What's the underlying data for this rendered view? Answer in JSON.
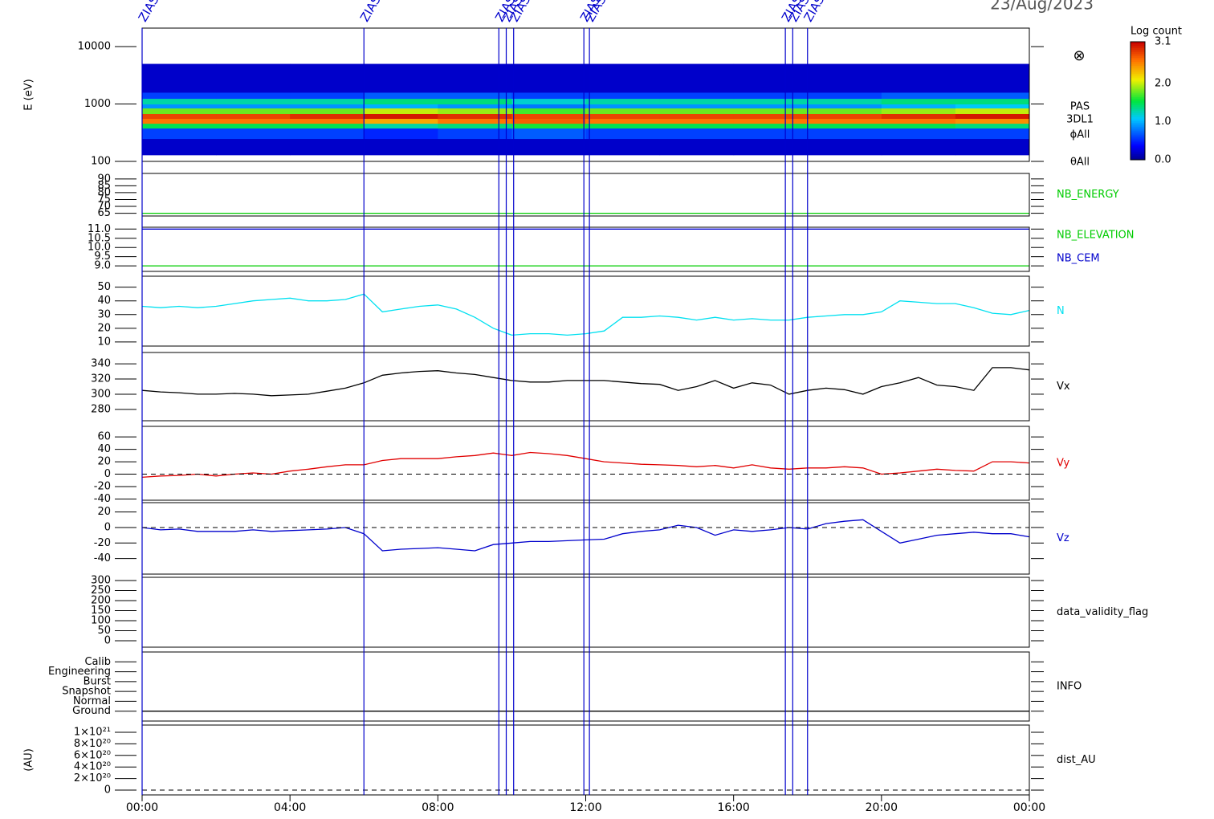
{
  "date": "23/Aug/2023",
  "events": {
    "label": "ZIAS",
    "x": [
      0.0,
      6.0,
      9.65,
      9.85,
      10.05,
      11.95,
      12.1,
      17.4,
      17.6,
      18.0
    ]
  },
  "chart_data": [
    {
      "type": "heatmap",
      "ylabel": "E (eV)",
      "log_y": true,
      "xlim": [
        0,
        24
      ],
      "ylim": [
        100,
        21000
      ],
      "yticks": [
        100,
        1000,
        10000
      ],
      "x_edges": [
        0,
        2,
        4,
        6,
        8,
        10,
        12,
        14,
        16,
        18,
        20,
        22,
        24
      ],
      "y_edges": [
        130,
        250,
        380,
        460,
        560,
        680,
        850,
        1000,
        1250,
        1600,
        5000
      ],
      "values": [
        [
          0.2,
          0.2,
          0.2,
          0.2,
          0.2,
          0.2,
          0.2,
          0.2,
          0.2,
          0.2,
          0.2,
          0.2
        ],
        [
          0.6,
          0.6,
          0.6,
          0.5,
          0.6,
          0.7,
          0.6,
          0.6,
          0.6,
          0.6,
          0.6,
          0.6
        ],
        [
          1.5,
          1.5,
          1.5,
          1.3,
          1.4,
          1.6,
          1.5,
          1.5,
          1.5,
          1.5,
          1.5,
          1.4
        ],
        [
          2.6,
          2.6,
          2.6,
          2.4,
          2.6,
          2.7,
          2.6,
          2.6,
          2.6,
          2.6,
          2.6,
          2.5
        ],
        [
          2.8,
          2.8,
          2.9,
          3.0,
          2.9,
          2.8,
          2.8,
          2.8,
          2.8,
          2.8,
          2.9,
          3.0
        ],
        [
          1.8,
          1.8,
          1.8,
          2.0,
          1.9,
          1.7,
          1.8,
          1.8,
          1.8,
          1.8,
          1.9,
          2.0
        ],
        [
          0.9,
          0.9,
          0.9,
          1.0,
          0.9,
          0.8,
          0.9,
          0.9,
          0.9,
          0.9,
          1.0,
          1.1
        ],
        [
          1.3,
          1.3,
          1.3,
          1.4,
          1.4,
          1.2,
          1.3,
          1.3,
          1.3,
          1.3,
          1.4,
          1.4
        ],
        [
          0.6,
          0.6,
          0.6,
          0.7,
          0.7,
          0.6,
          0.6,
          0.6,
          0.6,
          0.6,
          0.7,
          0.7
        ],
        [
          0.2,
          0.2,
          0.2,
          0.2,
          0.2,
          0.2,
          0.2,
          0.2,
          0.2,
          0.2,
          0.2,
          0.2
        ]
      ],
      "symbol": "⊗",
      "labels": [
        "PAS",
        "3DL1",
        "ϕAll",
        "θAll"
      ],
      "colorbar": {
        "label": "Log count",
        "lim": [
          0,
          3.1
        ],
        "ticks": [
          {
            "value": 0,
            "label": "0.0"
          },
          {
            "value": 1,
            "label": "1.0"
          },
          {
            "value": 2,
            "label": "2.0"
          },
          3.1
        ]
      }
    },
    {
      "type": "line",
      "xlim": [
        0,
        24
      ],
      "ylim": [
        63,
        94
      ],
      "yticks": [
        65,
        70,
        75,
        80,
        85,
        90
      ],
      "series": [
        {
          "name": "NB_ENERGY",
          "color": "#00cc00",
          "x": [
            0,
            24
          ],
          "values": [
            65,
            65
          ]
        }
      ]
    },
    {
      "type": "line",
      "xlim": [
        0,
        24
      ],
      "ylim": [
        8.7,
        11.1
      ],
      "yticks": [
        {
          "value": 9,
          "label": "9.0"
        },
        9.5,
        {
          "value": 10,
          "label": "10.0"
        },
        10.5,
        {
          "value": 11,
          "label": "11.0"
        }
      ],
      "series": [
        {
          "name": "NB_ELEVATION",
          "color": "#00cc00",
          "x": [
            0,
            24
          ],
          "values": [
            9,
            9
          ]
        },
        {
          "name": "NB_CEM",
          "color": "#0000cc",
          "x": [
            0,
            24
          ],
          "values": [
            11,
            11
          ]
        }
      ]
    },
    {
      "type": "line",
      "xlim": [
        0,
        24
      ],
      "ylim": [
        7,
        58
      ],
      "yticks": [
        10,
        20,
        30,
        40,
        50
      ],
      "series": [
        {
          "name": "N",
          "color": "#00e0f0",
          "x": [
            0,
            0.5,
            1,
            1.5,
            2,
            2.5,
            3,
            3.5,
            4,
            4.5,
            5,
            5.5,
            6,
            6.5,
            7,
            7.5,
            8,
            8.5,
            9,
            9.5,
            10,
            10.5,
            11,
            11.5,
            12,
            12.5,
            13,
            13.5,
            14,
            14.5,
            15,
            15.5,
            16,
            16.5,
            17,
            17.5,
            18,
            18.5,
            19,
            19.5,
            20,
            20.5,
            21,
            21.5,
            22,
            22.5,
            23,
            23.5,
            24
          ],
          "values": [
            36,
            35,
            36,
            35,
            36,
            38,
            40,
            41,
            42,
            40,
            40,
            41,
            45,
            32,
            34,
            36,
            37,
            34,
            28,
            20,
            15,
            16,
            16,
            15,
            16,
            18,
            28,
            28,
            29,
            28,
            26,
            28,
            26,
            27,
            26,
            26,
            28,
            29,
            30,
            30,
            32,
            40,
            39,
            38,
            38,
            35,
            31,
            30,
            33
          ]
        }
      ]
    },
    {
      "type": "line",
      "xlim": [
        0,
        24
      ],
      "ylim": [
        265,
        355
      ],
      "yticks": [
        280,
        300,
        320,
        340
      ],
      "series": [
        {
          "name": "Vx",
          "color": "#000000",
          "x": [
            0,
            0.5,
            1,
            1.5,
            2,
            2.5,
            3,
            3.5,
            4,
            4.5,
            5,
            5.5,
            6,
            6.5,
            7,
            7.5,
            8,
            8.5,
            9,
            9.5,
            10,
            10.5,
            11,
            11.5,
            12,
            12.5,
            13,
            13.5,
            14,
            14.5,
            15,
            15.5,
            16,
            16.5,
            17,
            17.5,
            18,
            18.5,
            19,
            19.5,
            20,
            20.5,
            21,
            21.5,
            22,
            22.5,
            23,
            23.5,
            24
          ],
          "values": [
            305,
            303,
            302,
            300,
            300,
            301,
            300,
            298,
            299,
            300,
            304,
            308,
            315,
            325,
            328,
            330,
            331,
            328,
            326,
            322,
            318,
            316,
            316,
            318,
            318,
            318,
            316,
            314,
            313,
            305,
            310,
            318,
            308,
            315,
            312,
            300,
            305,
            308,
            306,
            300,
            310,
            315,
            322,
            312,
            310,
            305,
            335,
            335,
            332
          ]
        }
      ]
    },
    {
      "type": "line",
      "xlim": [
        0,
        24
      ],
      "ylim": [
        -42,
        77
      ],
      "yticks": [
        -40,
        -20,
        0,
        20,
        40,
        60
      ],
      "zero_line": true,
      "series": [
        {
          "name": "Vy",
          "color": "#e00000",
          "x": [
            0,
            0.5,
            1,
            1.5,
            2,
            2.5,
            3,
            3.5,
            4,
            4.5,
            5,
            5.5,
            6,
            6.5,
            7,
            7.5,
            8,
            8.5,
            9,
            9.5,
            10,
            10.5,
            11,
            11.5,
            12,
            12.5,
            13,
            13.5,
            14,
            14.5,
            15,
            15.5,
            16,
            16.5,
            17,
            17.5,
            18,
            18.5,
            19,
            19.5,
            20,
            20.5,
            21,
            21.5,
            22,
            22.5,
            23,
            23.5,
            24
          ],
          "values": [
            -5,
            -3,
            -2,
            0,
            -3,
            0,
            2,
            0,
            5,
            8,
            12,
            15,
            15,
            22,
            25,
            25,
            25,
            28,
            30,
            34,
            30,
            35,
            33,
            30,
            25,
            20,
            18,
            16,
            15,
            14,
            12,
            14,
            10,
            15,
            10,
            8,
            10,
            10,
            12,
            10,
            0,
            2,
            5,
            8,
            6,
            5,
            20,
            20,
            18
          ]
        }
      ]
    },
    {
      "type": "line",
      "xlim": [
        0,
        24
      ],
      "ylim": [
        -60,
        32
      ],
      "yticks": [
        -40,
        -20,
        0,
        20
      ],
      "zero_line": true,
      "series": [
        {
          "name": "Vz",
          "color": "#0000cc",
          "x": [
            0,
            0.5,
            1,
            1.5,
            2,
            2.5,
            3,
            3.5,
            4,
            4.5,
            5,
            5.5,
            6,
            6.5,
            7,
            7.5,
            8,
            8.5,
            9,
            9.5,
            10,
            10.5,
            11,
            11.5,
            12,
            12.5,
            13,
            13.5,
            14,
            14.5,
            15,
            15.5,
            16,
            16.5,
            17,
            17.5,
            18,
            18.5,
            19,
            19.5,
            20,
            20.5,
            21,
            21.5,
            22,
            22.5,
            23,
            23.5,
            24
          ],
          "values": [
            0,
            -3,
            -2,
            -5,
            -5,
            -5,
            -3,
            -5,
            -4,
            -3,
            -2,
            0,
            -8,
            -30,
            -28,
            -27,
            -26,
            -28,
            -30,
            -22,
            -20,
            -18,
            -18,
            -17,
            -16,
            -15,
            -8,
            -5,
            -3,
            3,
            0,
            -10,
            -3,
            -5,
            -3,
            0,
            -2,
            5,
            8,
            10,
            -5,
            -20,
            -15,
            -10,
            -8,
            -6,
            -8,
            -8,
            -12
          ]
        }
      ]
    },
    {
      "type": "line",
      "xlim": [
        0,
        24
      ],
      "ylim": [
        -32,
        316
      ],
      "yticks": [
        0,
        50,
        100,
        150,
        200,
        250,
        300
      ],
      "series": [
        {
          "name": "data_validity_flag",
          "color": "#000000",
          "x": [],
          "values": []
        }
      ]
    },
    {
      "type": "line",
      "xlim": [
        0,
        24
      ],
      "ylim": [
        -1,
        6
      ],
      "yticks": [
        {
          "value": 0,
          "label": "Ground"
        },
        {
          "value": 1,
          "label": "Normal"
        },
        {
          "value": 2,
          "label": "Snapshot"
        },
        {
          "value": 3,
          "label": "Burst"
        },
        {
          "value": 4,
          "label": "Engineering"
        },
        {
          "value": 5,
          "label": "Calib"
        }
      ],
      "series": [
        {
          "name": "INFO",
          "color": "#000000",
          "x": [
            0,
            24
          ],
          "values": [
            0,
            0
          ]
        }
      ]
    },
    {
      "type": "line",
      "ylabel": "(AU)",
      "xlim": [
        0,
        24
      ],
      "ylim": [
        -8.3e+19,
        1.125e+21
      ],
      "zero_line": true,
      "yticks": [
        0,
        {
          "value": 2e+20,
          "label": "2×10²⁰"
        },
        {
          "value": 4e+20,
          "label": "4×10²⁰"
        },
        {
          "value": 6e+20,
          "label": "6×10²⁰"
        },
        {
          "value": 8e+20,
          "label": "8×10²⁰"
        },
        {
          "value": 1e+21,
          "label": "1×10²¹"
        }
      ],
      "xticks": [
        {
          "value": 0,
          "label": "00:00"
        },
        {
          "value": 4,
          "label": "04:00"
        },
        {
          "value": 8,
          "label": "08:00"
        },
        {
          "value": 12,
          "label": "12:00"
        },
        {
          "value": 16,
          "label": "16:00"
        },
        {
          "value": 20,
          "label": "20:00"
        },
        {
          "value": 24,
          "label": "00:00"
        }
      ],
      "series": [
        {
          "name": "dist_AU",
          "color": "#000000",
          "x": [],
          "values": []
        }
      ]
    }
  ]
}
